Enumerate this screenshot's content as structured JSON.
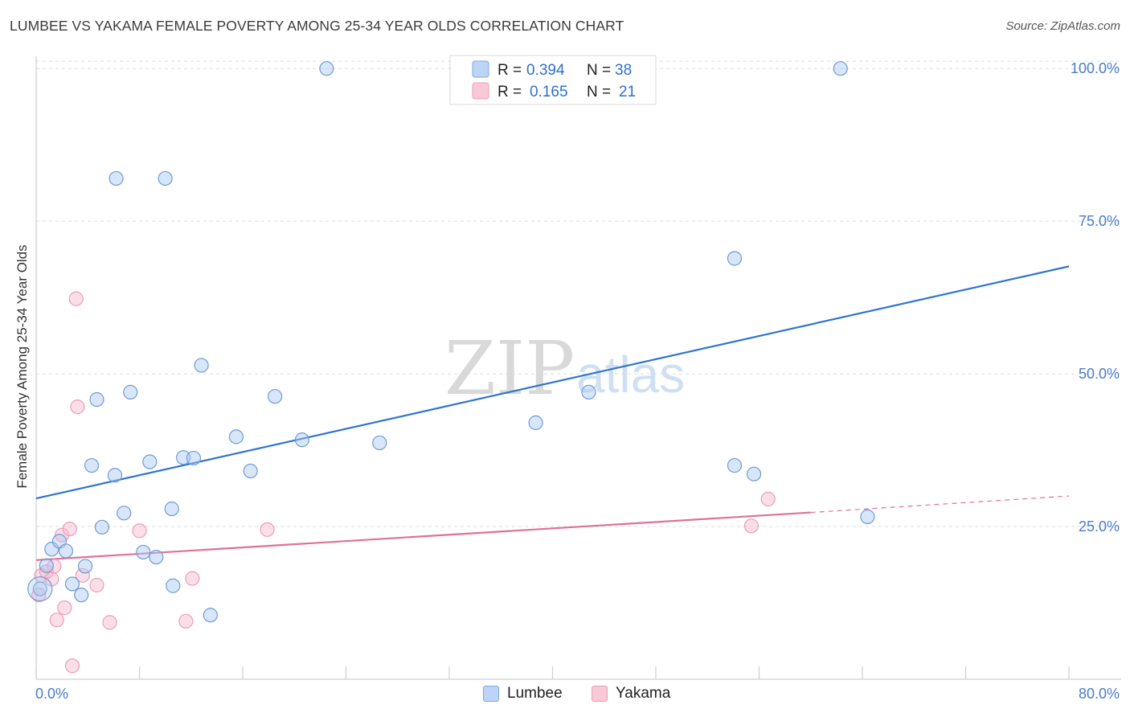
{
  "title": "LUMBEE VS YAKAMA FEMALE POVERTY AMONG 25-34 YEAR OLDS CORRELATION CHART",
  "source": "Source: ZipAtlas.com",
  "watermark": {
    "zip": "ZIP",
    "atlas": "atlas"
  },
  "legend_top": {
    "rows": [
      {
        "r_label": "R = ",
        "r_value": "0.394",
        "n_label": "N = ",
        "n_value": "38"
      },
      {
        "r_label": "R = ",
        "r_value": "0.165",
        "n_label": "N = ",
        "n_value": "21"
      }
    ]
  },
  "legend_bottom": {
    "lumbee": "Lumbee",
    "yakama": "Yakama"
  },
  "chart_data": {
    "type": "scatter",
    "title": "LUMBEE VS YAKAMA FEMALE POVERTY AMONG 25-34 YEAR OLDS CORRELATION CHART",
    "xlabel": "",
    "ylabel": "Female Poverty Among 25-34 Year Olds",
    "xlim": [
      0,
      80
    ],
    "ylim": [
      0,
      102
    ],
    "x_tick_labels": [
      "0.0%",
      "80.0%"
    ],
    "y_tick_labels": [
      "25.0%",
      "50.0%",
      "75.0%",
      "100.0%"
    ],
    "y_ticks": [
      25,
      50,
      75,
      100
    ],
    "colors": {
      "lumbee": "#a9c8f2",
      "lumbee_line": "#2f74d0",
      "yakama": "#f6b8cb",
      "yakama_line": "#e07099"
    },
    "series": [
      {
        "name": "Lumbee",
        "r": 0.394,
        "n": 38,
        "trend": {
          "x": [
            0,
            80
          ],
          "y": [
            29.6,
            67.6
          ]
        },
        "points": [
          [
            0.3,
            14.8
          ],
          [
            0.8,
            18.6
          ],
          [
            1.2,
            21.3
          ],
          [
            1.8,
            22.6
          ],
          [
            2.3,
            21.0
          ],
          [
            2.8,
            15.6
          ],
          [
            3.5,
            13.8
          ],
          [
            3.8,
            18.5
          ],
          [
            4.3,
            35.0
          ],
          [
            4.7,
            45.8
          ],
          [
            5.1,
            24.9
          ],
          [
            6.1,
            33.4
          ],
          [
            6.2,
            82.0
          ],
          [
            6.8,
            27.2
          ],
          [
            7.3,
            47.0
          ],
          [
            8.3,
            20.8
          ],
          [
            8.8,
            35.6
          ],
          [
            9.3,
            20.0
          ],
          [
            10.0,
            82.0
          ],
          [
            10.5,
            27.9
          ],
          [
            10.6,
            15.3
          ],
          [
            11.4,
            36.3
          ],
          [
            12.2,
            36.2
          ],
          [
            12.8,
            51.4
          ],
          [
            13.5,
            10.5
          ],
          [
            15.5,
            39.7
          ],
          [
            16.6,
            34.1
          ],
          [
            18.5,
            46.3
          ],
          [
            20.6,
            39.2
          ],
          [
            22.5,
            100.0
          ],
          [
            26.6,
            38.7
          ],
          [
            38.7,
            42.0
          ],
          [
            42.8,
            47.0
          ],
          [
            54.1,
            68.9
          ],
          [
            54.1,
            35.0
          ],
          [
            55.6,
            33.6
          ],
          [
            62.3,
            100.0
          ],
          [
            64.4,
            26.6
          ]
        ]
      },
      {
        "name": "Yakama",
        "r": 0.165,
        "n": 21,
        "trend": {
          "x": [
            0,
            60
          ],
          "y": [
            19.5,
            27.3
          ],
          "dashed_to": {
            "x": 80,
            "y": 30.0
          }
        },
        "points": [
          [
            0.2,
            13.8
          ],
          [
            0.4,
            17.0
          ],
          [
            0.8,
            17.6
          ],
          [
            1.2,
            16.4
          ],
          [
            1.4,
            18.5
          ],
          [
            1.6,
            9.7
          ],
          [
            2.0,
            23.6
          ],
          [
            2.2,
            11.7
          ],
          [
            2.6,
            24.6
          ],
          [
            2.8,
            2.2
          ],
          [
            3.1,
            62.3
          ],
          [
            3.2,
            44.6
          ],
          [
            3.6,
            17.0
          ],
          [
            4.7,
            15.4
          ],
          [
            5.7,
            9.3
          ],
          [
            8.0,
            24.3
          ],
          [
            11.6,
            9.5
          ],
          [
            12.1,
            16.5
          ],
          [
            17.9,
            24.5
          ],
          [
            55.4,
            25.1
          ],
          [
            56.7,
            29.5
          ]
        ]
      }
    ]
  }
}
